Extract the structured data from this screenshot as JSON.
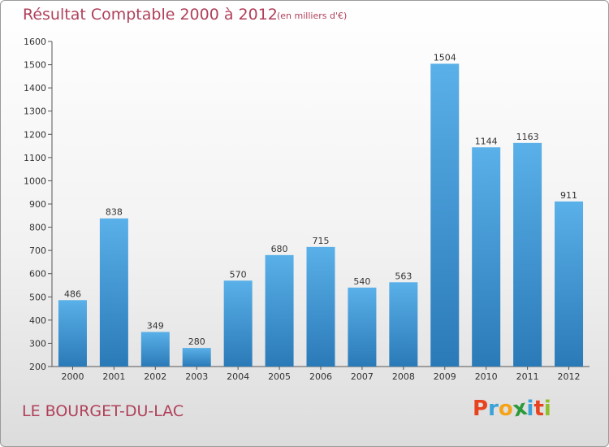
{
  "header": {
    "title": "Résultat Comptable 2000 à 2012",
    "subtitle": "(en milliers d'€)"
  },
  "footer": {
    "place": "LE BOURGET-DU-LAC",
    "logo": "Proxiti",
    "logo_colors": [
      "#e8431f",
      "#3aa2d8",
      "#f5a31b",
      "#2b9a3a",
      "#3aa2d8",
      "#e8431f",
      "#8fbf2b"
    ]
  },
  "colors": {
    "bar_top": "#5ab0e8",
    "bar_bottom": "#2a7ab8",
    "text": "#b0405a",
    "axis": "#333333"
  },
  "chart_data": {
    "type": "bar",
    "title": "Résultat Comptable 2000 à 2012",
    "subtitle": "(en milliers d'€)",
    "categories": [
      "2000",
      "2001",
      "2002",
      "2003",
      "2004",
      "2005",
      "2006",
      "2007",
      "2008",
      "2009",
      "2010",
      "2011",
      "2012"
    ],
    "values": [
      486,
      838,
      349,
      280,
      570,
      680,
      715,
      540,
      563,
      1504,
      1144,
      1163,
      911
    ],
    "xlabel": "",
    "ylabel": "",
    "ylim": [
      200,
      1600
    ],
    "yticks": [
      200,
      300,
      400,
      500,
      600,
      700,
      800,
      900,
      1000,
      1100,
      1200,
      1300,
      1400,
      1500,
      1600
    ],
    "grid": false,
    "data_labels": true
  }
}
